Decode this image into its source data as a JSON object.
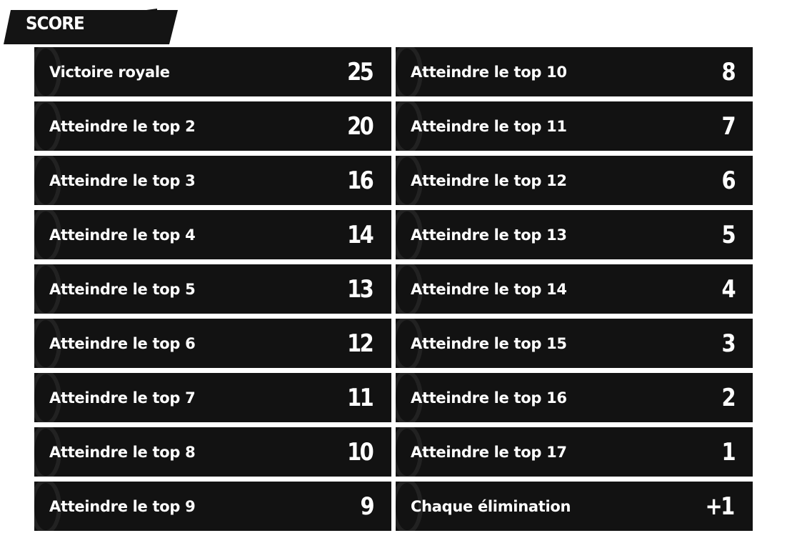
{
  "title": "SCORE",
  "left_column": [
    {
      "label": "Victoire royale",
      "points": "25"
    },
    {
      "label": "Atteindre le top 2",
      "points": "20"
    },
    {
      "label": "Atteindre le top 3",
      "points": "16"
    },
    {
      "label": "Atteindre le top 4",
      "points": "14"
    },
    {
      "label": "Atteindre le top 5",
      "points": "13"
    },
    {
      "label": "Atteindre le top 6",
      "points": "12"
    },
    {
      "label": "Atteindre le top 7",
      "points": "11"
    },
    {
      "label": "Atteindre le top 8",
      "points": "10"
    },
    {
      "label": "Atteindre le top 9",
      "points": "9"
    }
  ],
  "right_column": [
    {
      "label": "Atteindre le top 10",
      "points": "8"
    },
    {
      "label": "Atteindre le top 11",
      "points": "7"
    },
    {
      "label": "Atteindre le top 12",
      "points": "6"
    },
    {
      "label": "Atteindre le top 13",
      "points": "5"
    },
    {
      "label": "Atteindre le top 14",
      "points": "4"
    },
    {
      "label": "Atteindre le top 15",
      "points": "3"
    },
    {
      "label": "Atteindre le top 16",
      "points": "2"
    },
    {
      "label": "Atteindre le top 17",
      "points": "1"
    },
    {
      "label": "Chaque élimination",
      "points": "+1"
    }
  ],
  "colors": {
    "row_bg": "#121212",
    "text": "#ffffff",
    "page_bg": "#ffffff"
  }
}
